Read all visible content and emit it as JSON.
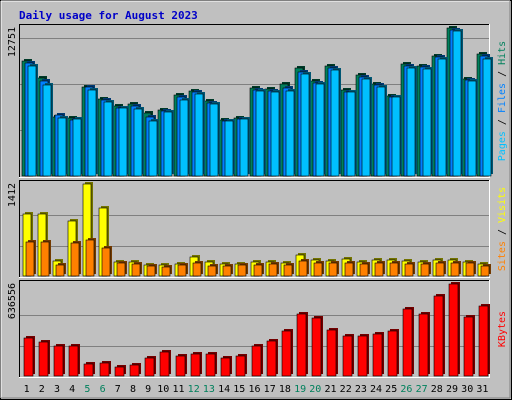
{
  "chart_data": {
    "title": "Daily usage for August 2023",
    "days": [
      "1",
      "2",
      "3",
      "4",
      "5",
      "6",
      "7",
      "8",
      "9",
      "10",
      "11",
      "12",
      "13",
      "14",
      "15",
      "16",
      "17",
      "18",
      "19",
      "20",
      "21",
      "22",
      "23",
      "24",
      "25",
      "26",
      "27",
      "28",
      "29",
      "30",
      "31"
    ],
    "weekend_days": [
      5,
      6,
      12,
      13,
      19,
      20,
      26,
      27
    ],
    "panels": [
      {
        "type": "bar",
        "ymax": 12751,
        "ymax_label": "12751",
        "legend": [
          {
            "text": "Pages",
            "color": "#00c0ff"
          },
          {
            "text": " / ",
            "color": "#000000"
          },
          {
            "text": "Files",
            "color": "#0080ff"
          },
          {
            "text": " / ",
            "color": "#000000"
          },
          {
            "text": "Hits",
            "color": "#00805c"
          }
        ],
        "series": [
          {
            "name": "Hits",
            "color": "#00805c",
            "values": [
              9883,
              8426,
              5108,
              4974,
              7705,
              6612,
              6025,
              6213,
              5412,
              5704,
              6962,
              7348,
              6437,
              4826,
              5032,
              7539,
              7474,
              7930,
              9264,
              8157,
              9437,
              7407,
              8710,
              7898,
              6920,
              9633,
              9496,
              10380,
              12751,
              8395,
              10530
            ]
          },
          {
            "name": "Files",
            "color": "#0080ff",
            "values": [
              9700,
              8170,
              5230,
              4820,
              7640,
              6576,
              5890,
              6020,
              5120,
              5620,
              6770,
              7210,
              6330,
              4770,
              4930,
              7440,
              7330,
              7570,
              8990,
              8030,
              9310,
              7280,
              8540,
              7800,
              6818,
              9450,
              9386,
              10220,
              12570,
              8312,
              10380
            ]
          },
          {
            "name": "Pages",
            "color": "#00c0ff",
            "values": [
              9520,
              7830,
              4960,
              4870,
              7450,
              6407,
              5830,
              5750,
              4760,
              5540,
              6590,
              7050,
              6245,
              4710,
              4930,
              7300,
              7230,
              7350,
              8810,
              7930,
              9110,
              7200,
              8340,
              7680,
              6770,
              9300,
              9200,
              10120,
              12470,
              8190,
              10110
            ]
          }
        ]
      },
      {
        "type": "bar",
        "ymax": 1412,
        "ymax_label": "1412",
        "legend": [
          {
            "text": "Sites",
            "color": "#ff8000"
          },
          {
            "text": " / ",
            "color": "#000000"
          },
          {
            "text": "Visits",
            "color": "#ffff00"
          }
        ],
        "series": [
          {
            "name": "Visits",
            "color": "#ffff00",
            "values": [
              957,
              957,
              225,
              842,
              1412,
              1042,
              215,
              210,
              174,
              170,
              187,
              290,
              216,
              178,
              190,
              208,
              222,
              206,
              315,
              238,
              235,
              268,
              215,
              240,
              248,
              231,
              220,
              246,
              246,
              220,
              185
            ]
          },
          {
            "name": "Sites",
            "color": "#ff8000",
            "values": [
              516,
              518,
              164,
              500,
              560,
              427,
              193,
              187,
              154,
              140,
              163,
              202,
              159,
              158,
              168,
              174,
              178,
              172,
              231,
              193,
              201,
              206,
              188,
              199,
              202,
              186,
              191,
              197,
              200,
              194,
              160
            ]
          }
        ]
      },
      {
        "type": "bar",
        "ymax": 636556,
        "ymax_label": "636556",
        "legend": [
          {
            "text": "KBytes",
            "color": "#ff0000"
          }
        ],
        "series": [
          {
            "name": "KBytes",
            "color": "#ff0000",
            "values": [
              262000,
              237000,
              206000,
              208000,
              81000,
              93000,
              64000,
              75000,
              127000,
              168000,
              137000,
              153000,
              150000,
              123000,
              141000,
              205000,
              242000,
              308000,
              432000,
              398000,
              318000,
              275000,
              275000,
              289000,
              312000,
              461000,
              429000,
              554000,
              636556,
              410000,
              481000
            ]
          }
        ]
      }
    ]
  }
}
